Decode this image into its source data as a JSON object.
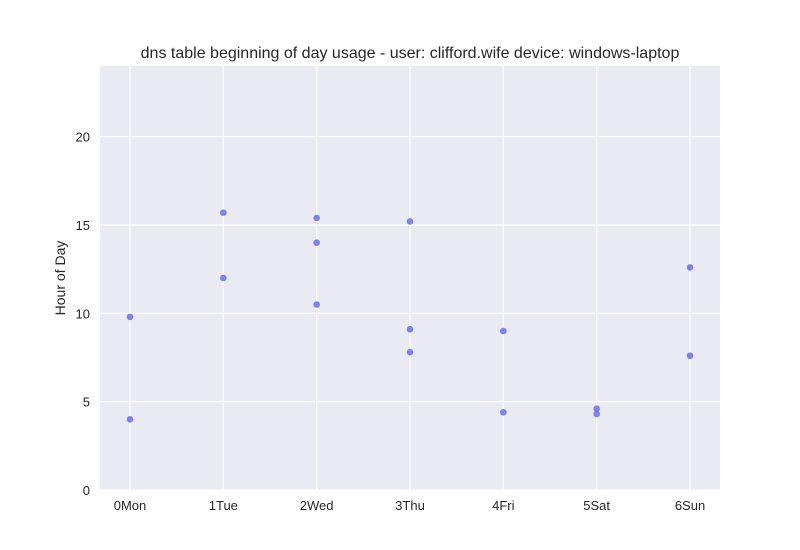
{
  "chart_data": {
    "type": "scatter",
    "title": "dns table beginning of day usage -  user: clifford.wife device: windows-laptop",
    "xlabel": "",
    "ylabel": "Hour of Day",
    "x_categories": [
      "0Mon",
      "1Tue",
      "2Wed",
      "3Thu",
      "4Fri",
      "5Sat",
      "6Sun"
    ],
    "y_ticks": [
      0,
      5,
      10,
      15,
      20
    ],
    "ylim": [
      0,
      24
    ],
    "grid": true,
    "marker_color": "#6a6ef0",
    "background_color": "#eaeaf2",
    "points": [
      {
        "x": "0Mon",
        "y": 9.8
      },
      {
        "x": "0Mon",
        "y": 4.0
      },
      {
        "x": "1Tue",
        "y": 15.7
      },
      {
        "x": "1Tue",
        "y": 12.0
      },
      {
        "x": "2Wed",
        "y": 15.4
      },
      {
        "x": "2Wed",
        "y": 14.0
      },
      {
        "x": "2Wed",
        "y": 10.5
      },
      {
        "x": "3Thu",
        "y": 15.2
      },
      {
        "x": "3Thu",
        "y": 9.1
      },
      {
        "x": "3Thu",
        "y": 7.8
      },
      {
        "x": "4Fri",
        "y": 9.0
      },
      {
        "x": "4Fri",
        "y": 4.4
      },
      {
        "x": "5Sat",
        "y": 4.6
      },
      {
        "x": "5Sat",
        "y": 4.3
      },
      {
        "x": "6Sun",
        "y": 12.6
      },
      {
        "x": "6Sun",
        "y": 7.6
      }
    ]
  }
}
